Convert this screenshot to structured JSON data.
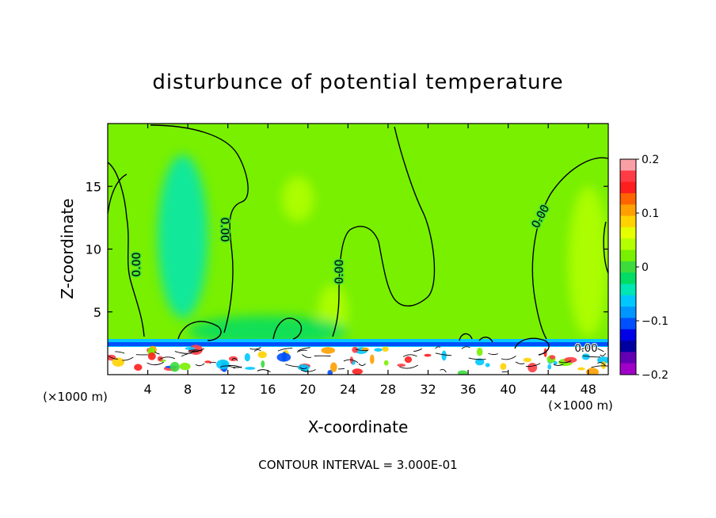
{
  "chart_data": {
    "type": "heatmap",
    "title": "disturbunce of potential temperature",
    "xlabel": "X-coordinate",
    "ylabel": "Z-coordinate",
    "x_unit": "(×1000 m)",
    "y_unit": "(×1000 m)",
    "xlim": [
      0,
      50
    ],
    "ylim": [
      0,
      20
    ],
    "x_ticks": [
      4,
      8,
      12,
      16,
      20,
      24,
      28,
      32,
      36,
      40,
      44,
      48
    ],
    "y_ticks": [
      5,
      10,
      15
    ],
    "colorbar": {
      "min": -0.2,
      "max": 0.2,
      "tick_values": [
        0.2,
        0.1,
        0,
        -0.1,
        -0.2
      ],
      "tick_labels": [
        "0.2",
        "0.1",
        "0",
        "−0.1",
        "−0.2"
      ],
      "colors": [
        "#f9a0a6",
        "#ff3c46",
        "#ff1e1e",
        "#ff6400",
        "#ffa000",
        "#ffd200",
        "#e6ff00",
        "#b4ff00",
        "#78f000",
        "#3cdc3c",
        "#00dc64",
        "#00e6b4",
        "#00c8ff",
        "#0096ff",
        "#0050ff",
        "#0000e6",
        "#0000a0",
        "#6400b4",
        "#a000c8"
      ]
    },
    "contour_label": "0.00",
    "contour_interval_text": "CONTOUR INTERVAL = 3.000E-01",
    "background_value": 0.02,
    "anomalies": [
      {
        "x": 7.5,
        "z": 11,
        "rx": 2.5,
        "rz": 6.5,
        "value": -0.04
      },
      {
        "x": 48,
        "z": 9,
        "rx": 2,
        "rz": 6,
        "value": 0.035
      },
      {
        "x": 19,
        "z": 14,
        "rx": 1.6,
        "rz": 1.8,
        "value": 0.04
      },
      {
        "x": 22.5,
        "z": 5,
        "rx": 1.5,
        "rz": 2.2,
        "value": 0.04
      },
      {
        "x": 27,
        "z": 15,
        "rx": 3,
        "rz": 4,
        "value": 0.025
      },
      {
        "x": 16,
        "z": 3.5,
        "rx": 8,
        "rz": 1.2,
        "value": -0.03
      }
    ]
  }
}
